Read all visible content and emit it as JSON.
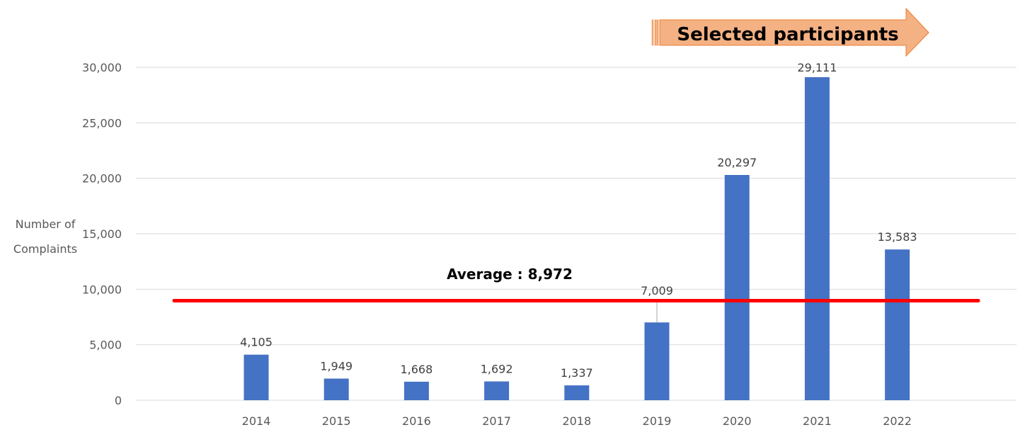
{
  "chart_data": {
    "type": "bar",
    "categories": [
      "2014",
      "2015",
      "2016",
      "2017",
      "2018",
      "2019",
      "2020",
      "2021",
      "2022"
    ],
    "values": [
      4105,
      1949,
      1668,
      1692,
      1337,
      7009,
      20297,
      29111,
      13583
    ],
    "value_labels": [
      "4,105",
      "1,949",
      "1,668",
      "1,692",
      "1,337",
      "7,009",
      "20,297",
      "29,111",
      "13,583"
    ],
    "ylabel_lines": [
      "Number of",
      "Complaints"
    ],
    "ylim": [
      0,
      30000
    ],
    "yticks": [
      0,
      5000,
      10000,
      15000,
      20000,
      25000,
      30000
    ],
    "ytick_labels": [
      "0",
      "5,000",
      "10,000",
      "15,000",
      "20,000",
      "25,000",
      "30,000"
    ],
    "grid": true,
    "bar_color": "#4472c4",
    "average": {
      "value": 8972,
      "label": "Average : 8,972",
      "color": "#ff0000"
    },
    "annotation": {
      "text": "Selected participants",
      "fill": "#f4b183",
      "stroke": "#ed7d31",
      "spans_from": "2020"
    }
  }
}
